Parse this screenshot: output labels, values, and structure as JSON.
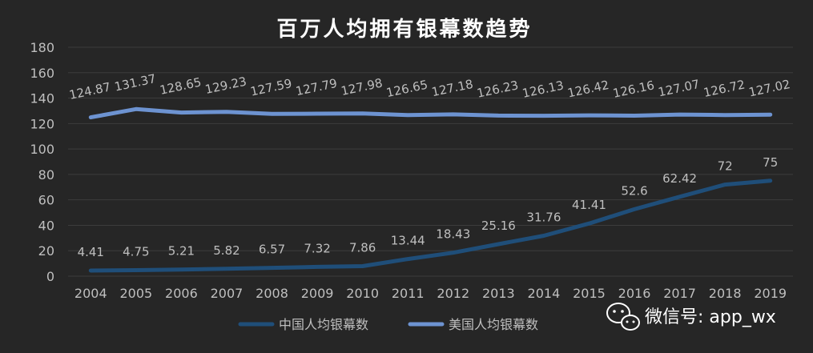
{
  "chart_data": {
    "type": "line",
    "title": "百万人均拥有银幕数趋势",
    "categories": [
      "2004",
      "2005",
      "2006",
      "2007",
      "2008",
      "2009",
      "2010",
      "2011",
      "2012",
      "2013",
      "2014",
      "2015",
      "2016",
      "2017",
      "2018",
      "2019"
    ],
    "series": [
      {
        "name": "中国人均银幕数",
        "color": "#1f4e79",
        "values": [
          4.41,
          4.75,
          5.21,
          5.82,
          6.57,
          7.32,
          7.86,
          13.44,
          18.43,
          25.16,
          31.76,
          41.41,
          52.6,
          62.42,
          72,
          75
        ],
        "labels": [
          "4.41",
          "4.75",
          "5.21",
          "5.82",
          "6.57",
          "7.32",
          "7.86",
          "13.44",
          "18.43",
          "25.16",
          "31.76",
          "41.41",
          "52.6",
          "62.42",
          "72",
          "75"
        ]
      },
      {
        "name": "美国人均银幕数",
        "color": "#6d93d1",
        "values": [
          124.87,
          131.37,
          128.65,
          129.23,
          127.59,
          127.79,
          127.98,
          126.65,
          127.18,
          126.23,
          126.13,
          126.42,
          126.16,
          127.07,
          126.72,
          127.02
        ],
        "labels": [
          "124.87",
          "131.37",
          "128.65",
          "129.23",
          "127.59",
          "127.79",
          "127.98",
          "126.65",
          "127.18",
          "126.23",
          "126.13",
          "126.42",
          "126.16",
          "127.07",
          "126.72",
          "127.02"
        ]
      }
    ],
    "ylim": [
      0,
      180
    ],
    "yticks": [
      "0",
      "20",
      "40",
      "60",
      "80",
      "100",
      "120",
      "140",
      "160",
      "180"
    ],
    "grid": true,
    "legend_position": "bottom"
  },
  "watermark": {
    "text": "微信号: app_wx",
    "icon": "wechat-icon"
  }
}
